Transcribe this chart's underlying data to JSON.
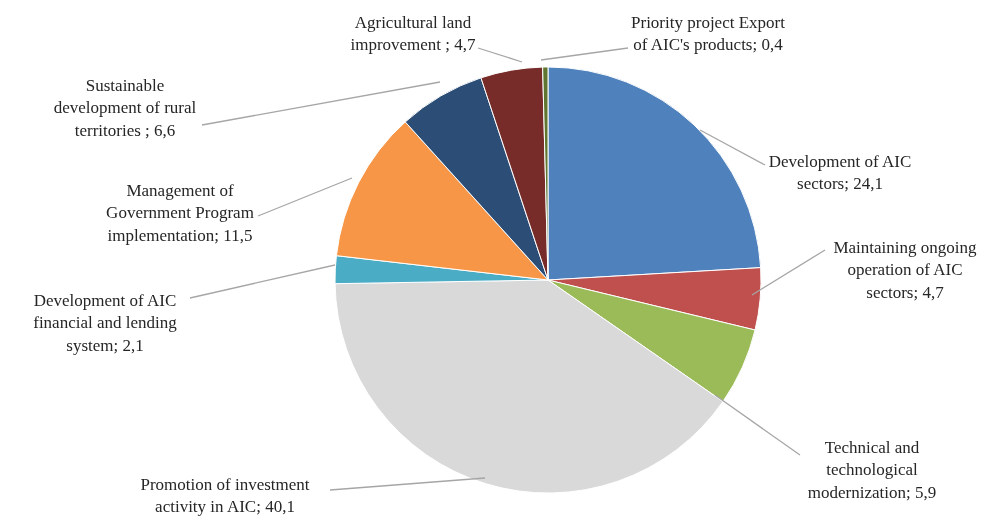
{
  "chart_data": {
    "type": "pie",
    "categories": [
      "Development of AIC sectors",
      "Maintaining ongoing operation of AIC sectors",
      "Technical and technological modernization",
      "Promotion of investment activity in AIC",
      "Development of AIC financial and lending system",
      "Management of Government Program implementation",
      "Sustainable development of rural territories ",
      "Agricultural land improvement ",
      "Priority project Export of AIC's products"
    ],
    "values": [
      24.1,
      4.7,
      5.9,
      40.1,
      2.1,
      11.5,
      6.6,
      4.7,
      0.4
    ],
    "colors": [
      "#4f81bd",
      "#c0504d",
      "#9bbb59",
      "#d9d9d9",
      "#4bacc6",
      "#f79646",
      "#2c4d75",
      "#772c2a",
      "#5f7530"
    ],
    "value_labels": [
      "24,1",
      "4,7",
      "5,9",
      "40,1",
      "2,1",
      "11,5",
      "6,6",
      "4,7",
      "0,4"
    ]
  }
}
